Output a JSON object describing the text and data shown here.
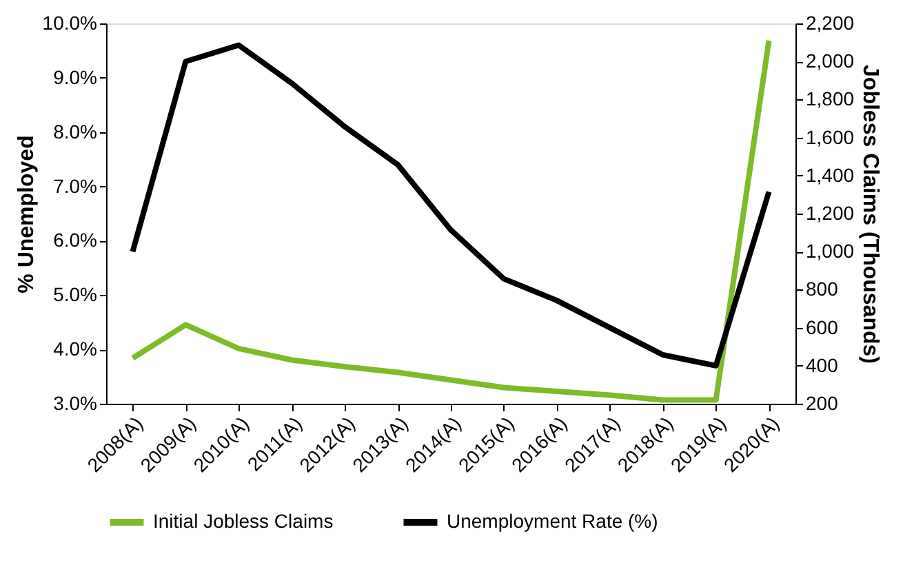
{
  "chart_data": {
    "type": "line",
    "ylabel": "% Unemployed",
    "y2label": "Jobless Claims (Thousands)",
    "categories": [
      "2008(A)",
      "2009(A)",
      "2010(A)",
      "2011(A)",
      "2012(A)",
      "2013(A)",
      "2014(A)",
      "2015(A)",
      "2016(A)",
      "2017(A)",
      "2018(A)",
      "2019(A)",
      "2020(A)"
    ],
    "series": [
      {
        "name": "Initial Jobless Claims",
        "color": "#7fba2a",
        "axis": "y2",
        "values": [
          440,
          615,
          490,
          430,
          395,
          365,
          325,
          285,
          265,
          245,
          220,
          220,
          2110
        ]
      },
      {
        "name": "Unemployment Rate (%)",
        "color": "#000000",
        "values": [
          5.8,
          9.3,
          9.6,
          8.9,
          8.1,
          7.4,
          6.2,
          5.3,
          4.9,
          4.4,
          3.9,
          3.7,
          6.9
        ]
      }
    ],
    "ylim": [
      3,
      10
    ],
    "yticks": [
      {
        "value": 3,
        "label": "3.0%"
      },
      {
        "value": 4,
        "label": "4.0%"
      },
      {
        "value": 5,
        "label": "5.0%"
      },
      {
        "value": 6,
        "label": "6.0%"
      },
      {
        "value": 7,
        "label": "7.0%"
      },
      {
        "value": 8,
        "label": "8.0%"
      },
      {
        "value": 9,
        "label": "9.0%"
      },
      {
        "value": 10,
        "label": "10.0%"
      }
    ],
    "y2lim": [
      200,
      2200
    ],
    "y2ticks": [
      {
        "value": 200,
        "label": "200"
      },
      {
        "value": 400,
        "label": "400"
      },
      {
        "value": 600,
        "label": "600"
      },
      {
        "value": 800,
        "label": "800"
      },
      {
        "value": 1000,
        "label": "1,000"
      },
      {
        "value": 1200,
        "label": "1,200"
      },
      {
        "value": 1400,
        "label": "1,400"
      },
      {
        "value": 1600,
        "label": "1,600"
      },
      {
        "value": 1800,
        "label": "1,800"
      },
      {
        "value": 2000,
        "label": "2,000"
      },
      {
        "value": 2200,
        "label": "2,200"
      }
    ],
    "legend": "bottom",
    "grid": false,
    "marker": "none",
    "line_style": "solid"
  }
}
